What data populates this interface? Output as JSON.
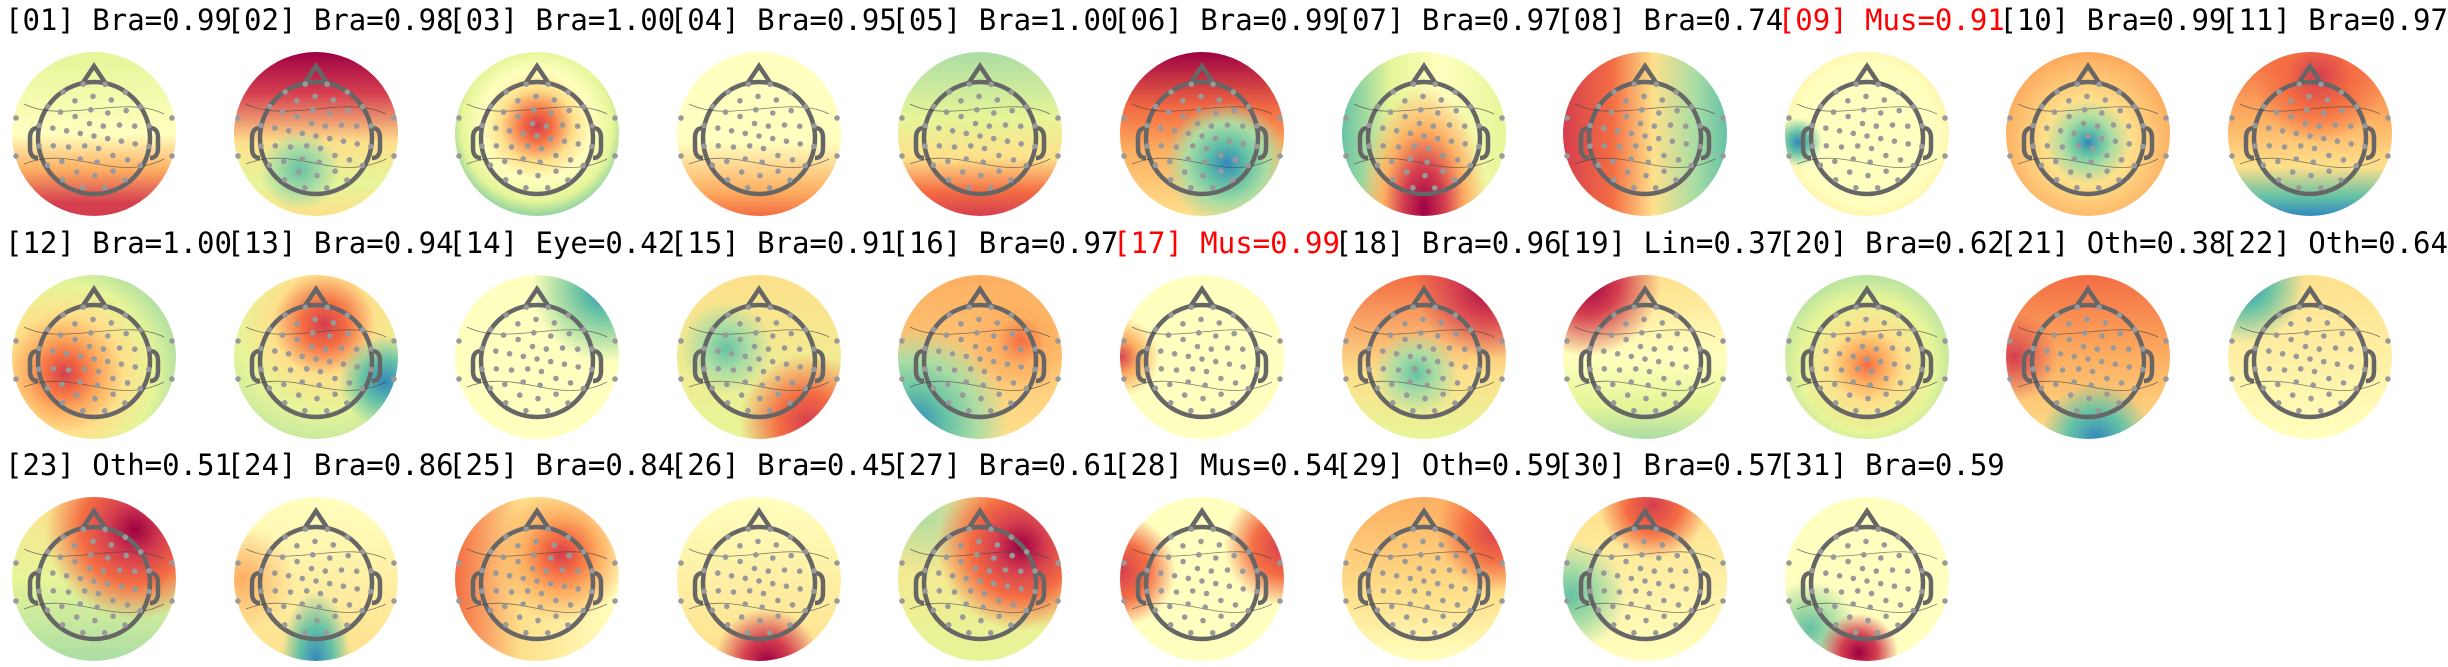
{
  "chart_data": {
    "type": "topomap-grid",
    "layout": "11 columns, 3 rows",
    "colormap": [
      "#9e0142",
      "#d53e4f",
      "#f46d43",
      "#fdae61",
      "#fee08b",
      "#ffffbf",
      "#e6f598",
      "#abdda4",
      "#66c2a5",
      "#3288bd"
    ],
    "highlight_color": "#ff0000",
    "components": [
      {
        "label": "[01] Bra=0.99",
        "highlighted": false
      },
      {
        "label": "[02] Bra=0.98",
        "highlighted": false
      },
      {
        "label": "[03] Bra=1.00",
        "highlighted": false
      },
      {
        "label": "[04] Bra=0.95",
        "highlighted": false
      },
      {
        "label": "[05] Bra=1.00",
        "highlighted": false
      },
      {
        "label": "[06] Bra=0.99",
        "highlighted": false
      },
      {
        "label": "[07] Bra=0.97",
        "highlighted": false
      },
      {
        "label": "[08] Bra=0.74",
        "highlighted": false
      },
      {
        "label": "[09] Mus=0.91",
        "highlighted": true
      },
      {
        "label": "[10] Bra=0.99",
        "highlighted": false
      },
      {
        "label": "[11] Bra=0.97",
        "highlighted": false
      },
      {
        "label": "[12] Bra=1.00",
        "highlighted": false
      },
      {
        "label": "[13] Bra=0.94",
        "highlighted": false
      },
      {
        "label": "[14] Eye=0.42",
        "highlighted": false
      },
      {
        "label": "[15] Bra=0.91",
        "highlighted": false
      },
      {
        "label": "[16] Bra=0.97",
        "highlighted": false
      },
      {
        "label": "[17] Mus=0.99",
        "highlighted": true
      },
      {
        "label": "[18] Bra=0.96",
        "highlighted": false
      },
      {
        "label": "[19] Lin=0.37",
        "highlighted": false
      },
      {
        "label": "[20] Bra=0.62",
        "highlighted": false
      },
      {
        "label": "[21] Oth=0.38",
        "highlighted": false
      },
      {
        "label": "[22] Oth=0.64",
        "highlighted": false
      },
      {
        "label": "[23] Oth=0.51",
        "highlighted": false
      },
      {
        "label": "[24] Bra=0.86",
        "highlighted": false
      },
      {
        "label": "[25] Bra=0.84",
        "highlighted": false
      },
      {
        "label": "[26] Bra=0.45",
        "highlighted": false
      },
      {
        "label": "[27] Bra=0.61",
        "highlighted": false
      },
      {
        "label": "[28] Mus=0.54",
        "highlighted": false
      },
      {
        "label": "[29] Oth=0.59",
        "highlighted": false
      },
      {
        "label": "[30] Bra=0.57",
        "highlighted": false
      },
      {
        "label": "[31] Bra=0.59",
        "highlighted": false
      }
    ]
  }
}
